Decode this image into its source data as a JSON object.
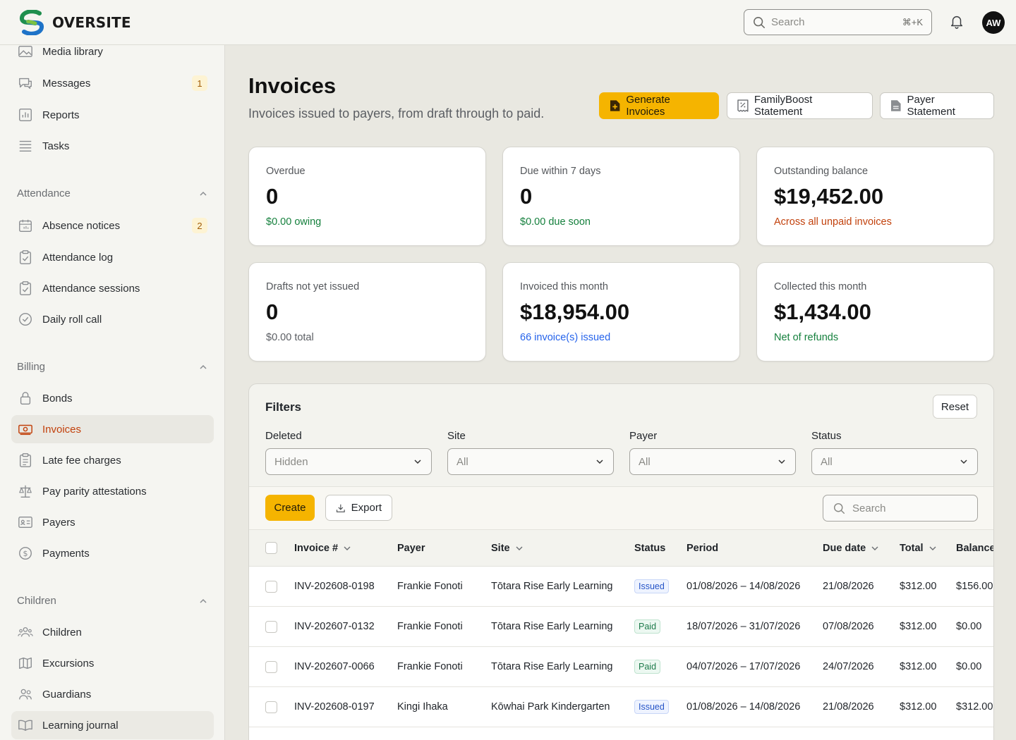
{
  "app": {
    "name": "OVERSITE"
  },
  "header": {
    "search_placeholder": "Search",
    "search_shortcut": "⌘+K",
    "user_initials": "AW"
  },
  "sidebar": {
    "top_items": [
      {
        "label": "Media library",
        "icon": "image-icon"
      },
      {
        "label": "Messages",
        "icon": "chat-icon",
        "badge": "1"
      },
      {
        "label": "Reports",
        "icon": "chart-icon"
      },
      {
        "label": "Tasks",
        "icon": "list-icon"
      }
    ],
    "sections": [
      {
        "title": "Attendance",
        "items": [
          {
            "label": "Absence notices",
            "icon": "calendar-icon",
            "badge": "2"
          },
          {
            "label": "Attendance log",
            "icon": "clipboard-check-icon"
          },
          {
            "label": "Attendance sessions",
            "icon": "clipboard-check-icon"
          },
          {
            "label": "Daily roll call",
            "icon": "check-circle-icon"
          }
        ]
      },
      {
        "title": "Billing",
        "items": [
          {
            "label": "Bonds",
            "icon": "lock-icon"
          },
          {
            "label": "Invoices",
            "icon": "banknote-icon",
            "active": true
          },
          {
            "label": "Late fee charges",
            "icon": "clipboard-list-icon"
          },
          {
            "label": "Pay parity attestations",
            "icon": "scale-icon"
          },
          {
            "label": "Payers",
            "icon": "id-card-icon"
          },
          {
            "label": "Payments",
            "icon": "dollar-circle-icon"
          }
        ]
      },
      {
        "title": "Children",
        "items": [
          {
            "label": "Children",
            "icon": "users-group-icon"
          },
          {
            "label": "Excursions",
            "icon": "map-icon"
          },
          {
            "label": "Guardians",
            "icon": "users-icon"
          },
          {
            "label": "Learning journal",
            "icon": "book-icon"
          }
        ]
      }
    ]
  },
  "page": {
    "title": "Invoices",
    "subtitle": "Invoices issued to payers, from draft through to paid.",
    "actions": {
      "generate": "Generate Invoices",
      "familyboost": "FamilyBoost Statement",
      "payer_statement": "Payer Statement"
    }
  },
  "stats": [
    {
      "label": "Overdue",
      "value": "0",
      "sub": "$0.00 owing",
      "sub_color": "#15803d"
    },
    {
      "label": "Due within 7 days",
      "value": "0",
      "sub": "$0.00 due soon",
      "sub_color": "#15803d"
    },
    {
      "label": "Outstanding balance",
      "value": "$19,452.00",
      "sub": "Across all unpaid invoices",
      "sub_color": "#c2410c"
    },
    {
      "label": "Drafts not yet issued",
      "value": "0",
      "sub": "$0.00 total",
      "sub_color": "#5b5e63"
    },
    {
      "label": "Invoiced this month",
      "value": "$18,954.00",
      "sub": "66 invoice(s) issued",
      "sub_color": "#2563eb"
    },
    {
      "label": "Collected this month",
      "value": "$1,434.00",
      "sub": "Net of refunds",
      "sub_color": "#15803d"
    }
  ],
  "filters": {
    "title": "Filters",
    "reset": "Reset",
    "fields": [
      {
        "label": "Deleted",
        "value": "Hidden"
      },
      {
        "label": "Site",
        "value": "All"
      },
      {
        "label": "Payer",
        "value": "All"
      },
      {
        "label": "Status",
        "value": "All"
      }
    ]
  },
  "table": {
    "create": "Create",
    "export": "Export",
    "search_placeholder": "Search",
    "columns": [
      "Invoice #",
      "Payer",
      "Site",
      "Status",
      "Period",
      "Due date",
      "Total",
      "Balance"
    ],
    "rows": [
      {
        "invoice": "INV-202608-0198",
        "payer": "Frankie Fonoti",
        "site": "Tōtara Rise Early Learning",
        "status": "Issued",
        "period": "01/08/2026 – 14/08/2026",
        "due": "21/08/2026",
        "total": "$312.00",
        "balance": "$156.00"
      },
      {
        "invoice": "INV-202607-0132",
        "payer": "Frankie Fonoti",
        "site": "Tōtara Rise Early Learning",
        "status": "Paid",
        "period": "18/07/2026 – 31/07/2026",
        "due": "07/08/2026",
        "total": "$312.00",
        "balance": "$0.00"
      },
      {
        "invoice": "INV-202607-0066",
        "payer": "Frankie Fonoti",
        "site": "Tōtara Rise Early Learning",
        "status": "Paid",
        "period": "04/07/2026 – 17/07/2026",
        "due": "24/07/2026",
        "total": "$312.00",
        "balance": "$0.00"
      },
      {
        "invoice": "INV-202608-0197",
        "payer": "Kingi Ihaka",
        "site": "Kōwhai Park Kindergarten",
        "status": "Issued",
        "period": "01/08/2026 – 14/08/2026",
        "due": "21/08/2026",
        "total": "$312.00",
        "balance": "$312.00"
      }
    ]
  }
}
